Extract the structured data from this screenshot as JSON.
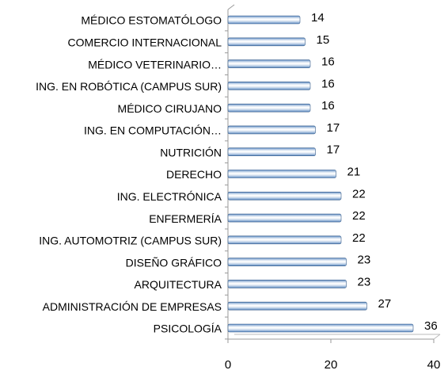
{
  "chart_data": {
    "type": "bar",
    "orientation": "horizontal",
    "categories": [
      "MÉDICO ESTOMATÓLOGO",
      "COMERCIO INTERNACIONAL",
      "MÉDICO VETERINARIO…",
      "ING. EN ROBÓTICA (CAMPUS SUR)",
      "MÉDICO CIRUJANO",
      "ING. EN COMPUTACIÓN…",
      "NUTRICIÓN",
      "DERECHO",
      "ING. ELECTRÓNICA",
      "ENFERMERÍA",
      "ING. AUTOMOTRIZ (CAMPUS SUR)",
      "DISEÑO GRÁFICO",
      "ARQUITECTURA",
      "ADMINISTRACIÓN DE EMPRESAS",
      "PSICOLOGÍA"
    ],
    "values": [
      14,
      15,
      16,
      16,
      16,
      17,
      17,
      21,
      22,
      22,
      22,
      23,
      23,
      27,
      36
    ],
    "color": "#4f81bd",
    "xlim": [
      0,
      40
    ],
    "xticks": [
      0,
      20,
      40
    ],
    "grid": false
  }
}
